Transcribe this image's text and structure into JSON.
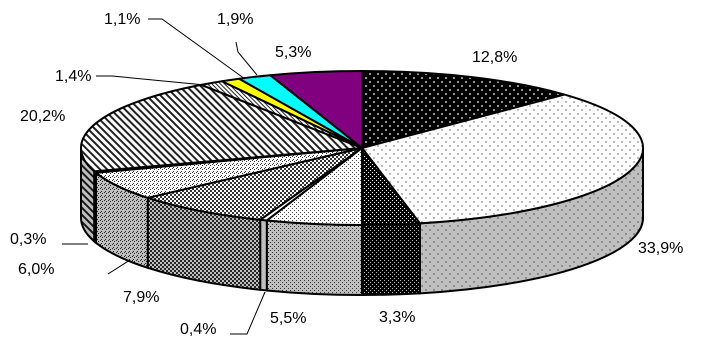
{
  "chart_data": {
    "type": "pie",
    "style": "3d",
    "grid": false,
    "legend": "none",
    "slices": [
      {
        "value": 12.8,
        "label": "12,8%",
        "color": "#000000",
        "pattern": "dots-black"
      },
      {
        "value": 33.9,
        "label": "33,9%",
        "color": "#ffffff",
        "pattern": "dots-light"
      },
      {
        "value": 3.3,
        "label": "3,3%",
        "color": "#000000",
        "pattern": "checker-dense"
      },
      {
        "value": 5.5,
        "label": "5,5%",
        "color": "#ffffff",
        "pattern": "dots-medium"
      },
      {
        "value": 0.4,
        "label": "0,4%",
        "color": "#ffffff",
        "pattern": "solid-white"
      },
      {
        "value": 7.9,
        "label": "7,9%",
        "color": "#c0c0c0",
        "pattern": "checker"
      },
      {
        "value": 6.0,
        "label": "6,0%",
        "color": "#e0e0e0",
        "pattern": "checker-light"
      },
      {
        "value": 0.3,
        "label": "0,3%",
        "color": "#ffffff",
        "pattern": "solid-white"
      },
      {
        "value": 20.2,
        "label": "20,2%",
        "color": "#ffffff",
        "pattern": "diagonal"
      },
      {
        "value": 1.4,
        "label": "1,4%",
        "color": "#ffffff",
        "pattern": "diagonal-fine"
      },
      {
        "value": 1.1,
        "label": "1,1%",
        "color": "#ffff00",
        "pattern": "solid"
      },
      {
        "value": 1.9,
        "label": "1,9%",
        "color": "#00ffff",
        "pattern": "solid"
      },
      {
        "value": 5.3,
        "label": "5,3%",
        "color": "#800080",
        "pattern": "solid"
      }
    ]
  }
}
